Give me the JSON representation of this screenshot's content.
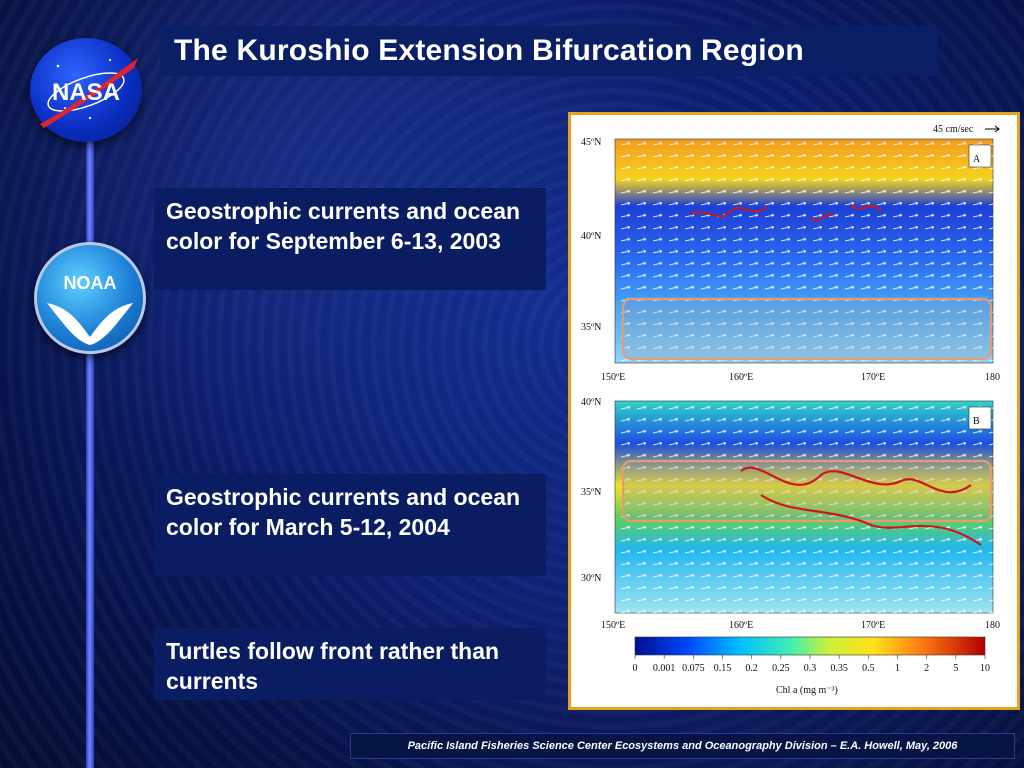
{
  "slide": {
    "title": "The Kuroshio Extension Bifurcation Region",
    "boxes": [
      "Geostrophic currents and ocean color for September 6-13, 2003",
      "Geostrophic currents and ocean color for March 5-12, 2004",
      "Turtles follow front rather than currents"
    ],
    "footer": "Pacific Island Fisheries Science Center Ecosystems and Oceanography Division – E.A. Howell, May, 2006"
  },
  "logos": {
    "nasa_text": "NASA",
    "noaa_text": "NOAA"
  },
  "figure": {
    "scale_label": "45 cm/sec",
    "panel_a": {
      "label": "A",
      "lat_labels": [
        "45ºN",
        "40ºN",
        "35ºN"
      ],
      "lon_labels": [
        "150ºE",
        "160ºE",
        "170ºE",
        "180"
      ]
    },
    "panel_b": {
      "label": "B",
      "lat_labels": [
        "40ºN",
        "35ºN",
        "30ºN"
      ],
      "lon_labels": [
        "150ºE",
        "160ºE",
        "170ºE",
        "180"
      ]
    },
    "colorbar": {
      "ticks": [
        "0",
        "0.001",
        "0.075",
        "0.15",
        "0.2",
        "0.25",
        "0.3",
        "0.35",
        "0.5",
        "1",
        "2",
        "5",
        "10"
      ],
      "label": "Chl a (mg m⁻³)"
    }
  },
  "colors": {
    "accent": "#e6a21b",
    "box_bg": "#0a1d63",
    "title_bg": "#0b1f66",
    "track_red": "#d0161b",
    "highlight_box": "#e79a73"
  }
}
